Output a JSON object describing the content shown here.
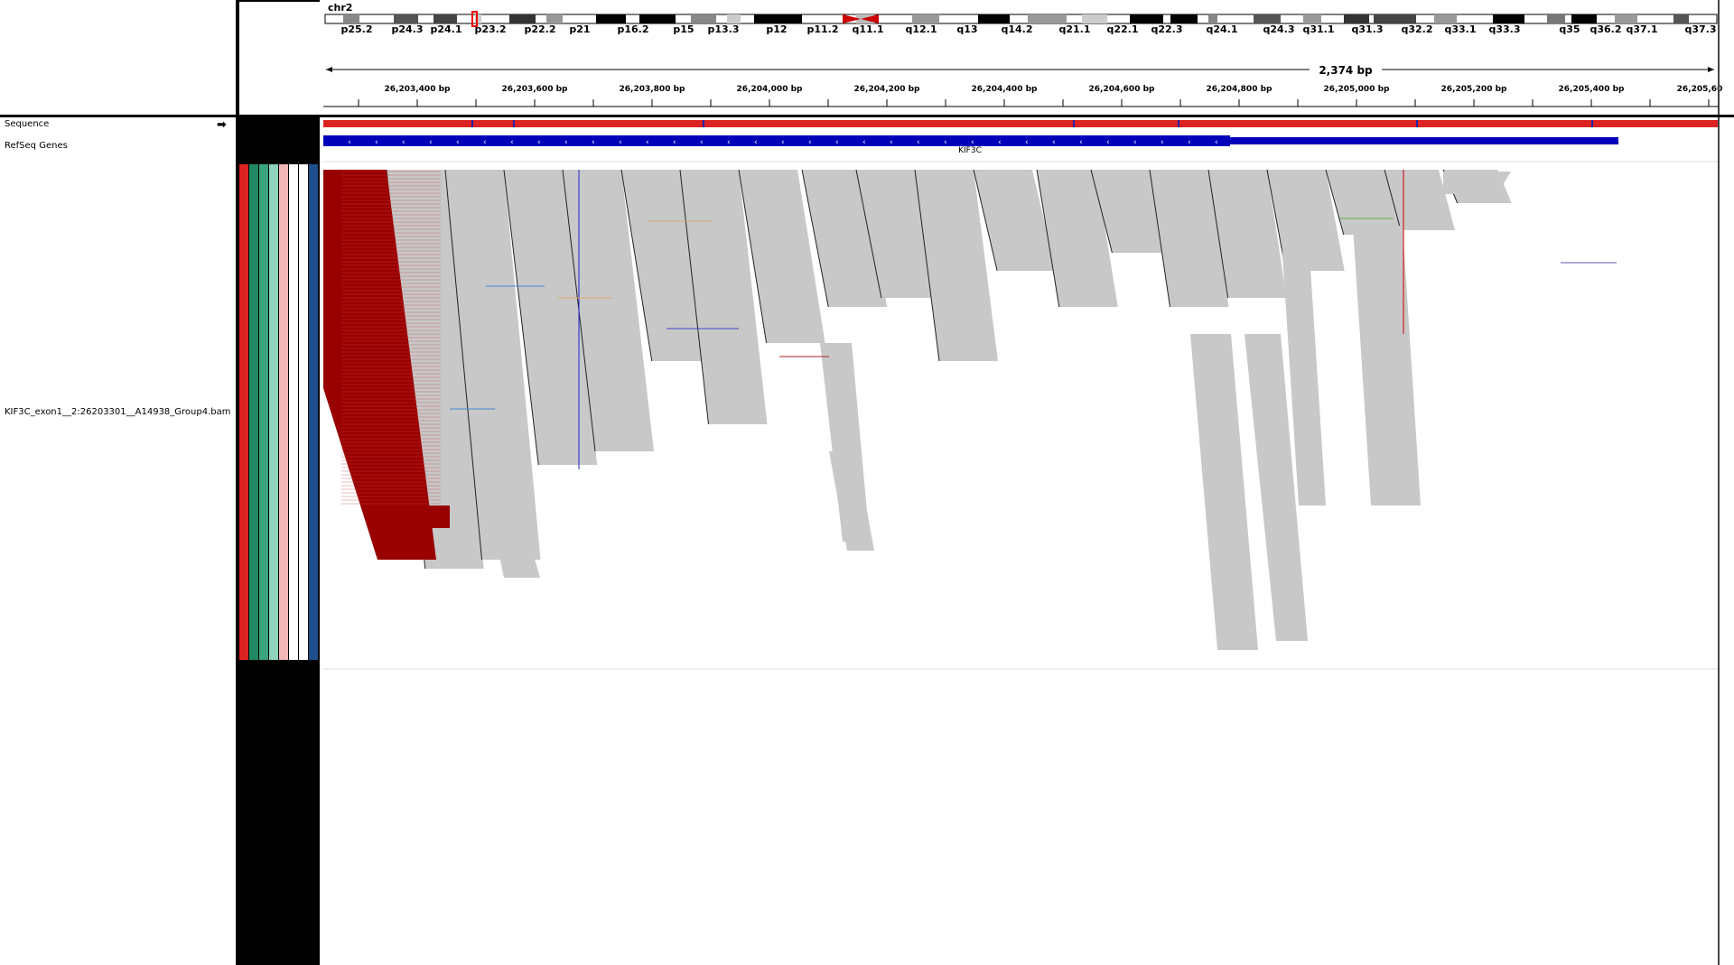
{
  "header": {
    "chromosome": "chr2",
    "span_label": "2,374 bp",
    "bands": [
      "p25.2",
      "p24.3",
      "p24.1",
      "p23.2",
      "p22.2",
      "p21",
      "p16.2",
      "p15",
      "p13.3",
      "p12",
      "p11.2",
      "q11.1",
      "q12.1",
      "q13",
      "q14.2",
      "q21.1",
      "q22.1",
      "q22.3",
      "q24.1",
      "q24.3",
      "q31.1",
      "q31.3",
      "q32.2",
      "q33.1",
      "q33.3",
      "q35",
      "q36.2",
      "q37.1",
      "q37.3"
    ],
    "ruler_ticks": [
      "26,203,400 bp",
      "26,203,600 bp",
      "26,203,800 bp",
      "26,204,000 bp",
      "26,204,200 bp",
      "26,204,400 bp",
      "26,204,600 bp",
      "26,204,800 bp",
      "26,205,000 bp",
      "26,205,200 bp",
      "26,205,400 bp",
      "26,205,60"
    ]
  },
  "tracks": {
    "sequence_label": "Sequence",
    "refseq_label": "RefSeq Genes",
    "gene_name": "KIF3C",
    "bam_label": "KIF3C_exon1__2:26203301__A14938_Group4.bam"
  },
  "colors": {
    "read": "#c8c8c8",
    "softclip": "#990000",
    "gene": "#0000bb",
    "centromere": "#cc0000",
    "attributes": [
      "#dd2222",
      "#1f8a63",
      "#3aa47e",
      "#8fd4bb",
      "#f4b7b7",
      "#ffffff",
      "#ffffff",
      "#1f4e8c"
    ]
  }
}
